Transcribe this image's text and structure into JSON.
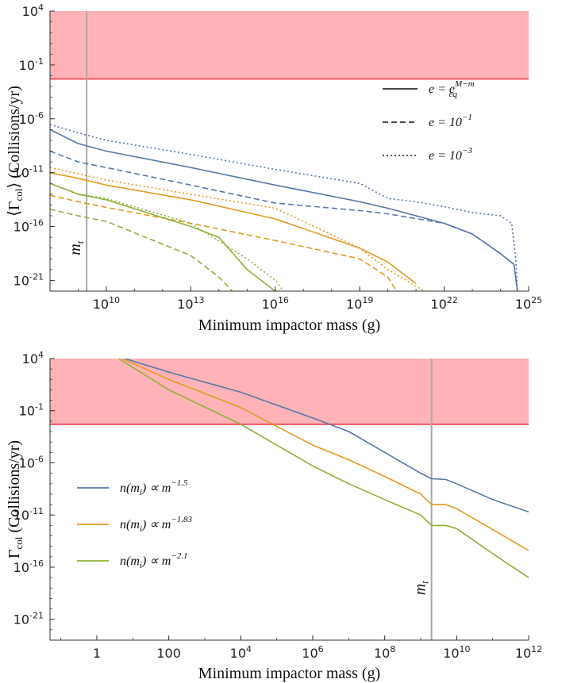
{
  "chart_data": [
    {
      "type": "line",
      "xscale": "log",
      "yscale": "log",
      "xlabel": "Minimum impactor mass (g)",
      "ylabel": "⟨Γ",
      "ylabel_sub": "col",
      "ylabel_rest": "⟩ (Collisions/yr)",
      "xlim": [
        100000000.0,
        1e+25
      ],
      "ylim": [
        1e-22,
        10000.0
      ],
      "xticks": [
        {
          "v": 10000000000.0,
          "base": "10",
          "exp": "10"
        },
        {
          "v": 10000000000000.0,
          "base": "10",
          "exp": "13"
        },
        {
          "v": 1e+16,
          "base": "10",
          "exp": "16"
        },
        {
          "v": 1e+19,
          "base": "10",
          "exp": "19"
        },
        {
          "v": 1e+22,
          "base": "10",
          "exp": "22"
        },
        {
          "v": 1e+25,
          "base": "10",
          "exp": "25"
        }
      ],
      "yticks": [
        {
          "v": 10000.0,
          "base": "10",
          "exp": "4"
        },
        {
          "v": 0.1,
          "base": "10",
          "exp": "-1"
        },
        {
          "v": 1e-06,
          "base": "10",
          "exp": "-6"
        },
        {
          "v": 1e-11,
          "base": "10",
          "exp": "-11"
        },
        {
          "v": 1e-16,
          "base": "10",
          "exp": "-16"
        },
        {
          "v": 1e-21,
          "base": "10",
          "exp": "-21"
        }
      ],
      "excluded_region": {
        "ymin": 0.005,
        "ymax": 10000.0,
        "fill": "#ffb3b8",
        "line": "#f0555e"
      },
      "vline": {
        "x": 2000000000.0,
        "label": "m",
        "label_sub": "t",
        "label_y": 1e-18
      },
      "legend_position": "top-right",
      "legend": [
        {
          "style": "solid",
          "label": "e = e",
          "sup": "M−m",
          "sub": "eq"
        },
        {
          "style": "dashed",
          "label": "e = 10",
          "sup": "−1",
          "sub": ""
        },
        {
          "style": "dotted",
          "label": "e = 10",
          "sup": "−3",
          "sub": ""
        }
      ],
      "series": [
        {
          "color": "#5878a8",
          "style": "solid",
          "points": [
            [
              100000000.0,
              1e-07
            ],
            [
              1000000000.0,
              5e-09
            ],
            [
              10000000000.0,
              1e-09
            ],
            [
              10000000000000.0,
              3e-11
            ],
            [
              1e+16,
              7e-13
            ],
            [
              1e+19,
              2e-14
            ],
            [
              1e+20,
              5e-15
            ],
            [
              1e+22,
              2e-16
            ],
            [
              1e+23,
              2e-17
            ],
            [
              1e+24,
              3e-19
            ],
            [
              3e+24,
              3e-20
            ],
            [
              4e+24,
              1e-22
            ]
          ]
        },
        {
          "color": "#5878a8",
          "style": "dashed",
          "points": [
            [
              100000000.0,
              1e-09
            ],
            [
              1000000000.0,
              1e-10
            ],
            [
              10000000000.0,
              3e-11
            ],
            [
              10000000000000.0,
              7e-13
            ],
            [
              1e+16,
              1.5e-14
            ],
            [
              1e+19,
              3e-15
            ],
            [
              1e+20,
              1.5e-15
            ],
            [
              1e+22,
              2e-16
            ],
            [
              1e+23,
              2e-17
            ],
            [
              1e+24,
              3e-19
            ],
            [
              3e+24,
              3e-20
            ],
            [
              4e+24,
              1e-22
            ]
          ]
        },
        {
          "color": "#5878a8",
          "style": "dotted",
          "points": [
            [
              100000000.0,
              3e-07
            ],
            [
              1000000000.0,
              5e-08
            ],
            [
              10000000000.0,
              1e-08
            ],
            [
              10000000000000.0,
              5e-10
            ],
            [
              1e+16,
              2e-11
            ],
            [
              1e+19,
              1e-12
            ],
            [
              1e+20,
              4e-14
            ],
            [
              1e+21,
              2e-14
            ],
            [
              1e+22,
              7e-15
            ],
            [
              1e+23,
              2e-15
            ],
            [
              1e+24,
              1e-15
            ],
            [
              2.5e+24,
              2e-16
            ],
            [
              3.5e+24,
              1e-19
            ],
            [
              4e+24,
              1e-22
            ]
          ]
        },
        {
          "color": "#e59a20",
          "style": "solid",
          "points": [
            [
              100000000.0,
              1e-11
            ],
            [
              1000000000.0,
              3e-12
            ],
            [
              10000000000.0,
              7e-13
            ],
            [
              10000000000000.0,
              3e-14
            ],
            [
              1e+16,
              5e-16
            ],
            [
              1e+19,
              1e-18
            ],
            [
              1e+20,
              5e-20
            ],
            [
              1e+21,
              5e-22
            ]
          ]
        },
        {
          "color": "#e59a20",
          "style": "dashed",
          "points": [
            [
              100000000.0,
              8e-14
            ],
            [
              1000000000.0,
              2e-14
            ],
            [
              10000000000.0,
              6e-15
            ],
            [
              10000000000000.0,
              2e-16
            ],
            [
              1e+16,
              5e-18
            ],
            [
              1e+19,
              1e-19
            ],
            [
              1e+20,
              2e-21
            ],
            [
              2e+20,
              1e-22
            ]
          ]
        },
        {
          "color": "#e59a20",
          "style": "dotted",
          "points": [
            [
              100000000.0,
              3e-11
            ],
            [
              1000000000.0,
              8e-12
            ],
            [
              10000000000.0,
              2e-12
            ],
            [
              10000000000000.0,
              1e-13
            ],
            [
              1e+16,
              5e-15
            ],
            [
              1e+19,
              1e-18
            ],
            [
              1e+20,
              1e-20
            ],
            [
              2e+21,
              1e-22
            ]
          ]
        },
        {
          "color": "#8fb03a",
          "style": "solid",
          "points": [
            [
              100000000.0,
              1e-12
            ],
            [
              1000000000.0,
              1e-13
            ],
            [
              10000000000.0,
              3e-14
            ],
            [
              10000000000000.0,
              1e-16
            ],
            [
              100000000000000.0,
              1e-17
            ],
            [
              1000000000000000.0,
              1e-20
            ],
            [
              1e+16,
              1e-22
            ]
          ]
        },
        {
          "color": "#8fb03a",
          "style": "dashed",
          "points": [
            [
              100000000.0,
              4e-15
            ],
            [
              1000000000.0,
              1e-15
            ],
            [
              10000000000.0,
              3e-16
            ],
            [
              10000000000000.0,
              2e-19
            ],
            [
              100000000000000.0,
              2e-21
            ],
            [
              300000000000000.0,
              1e-22
            ]
          ]
        },
        {
          "color": "#8fb03a",
          "style": "dotted",
          "points": [
            [
              100000000.0,
              1e-12
            ],
            [
              1000000000.0,
              1e-13
            ],
            [
              10000000000.0,
              4e-14
            ],
            [
              10000000000000.0,
              2e-16
            ],
            [
              1000000000000000.0,
              1e-19
            ],
            [
              1e+16,
              1e-21
            ],
            [
              2e+16,
              1e-22
            ]
          ]
        }
      ]
    },
    {
      "type": "line",
      "xscale": "log",
      "yscale": "log",
      "xlabel": "Minimum impactor mass (g)",
      "ylabel": "Γ",
      "ylabel_sub": "col",
      "ylabel_rest": " (Collisions/yr)",
      "xlim": [
        0.05,
        1000000000000.0
      ],
      "ylim": [
        1e-23,
        10000.0
      ],
      "xticks": [
        {
          "v": 1,
          "base": "1",
          "exp": ""
        },
        {
          "v": 100,
          "base": "100",
          "exp": ""
        },
        {
          "v": 10000.0,
          "base": "10",
          "exp": "4"
        },
        {
          "v": 1000000.0,
          "base": "10",
          "exp": "6"
        },
        {
          "v": 100000000.0,
          "base": "10",
          "exp": "8"
        },
        {
          "v": 10000000000.0,
          "base": "10",
          "exp": "10"
        },
        {
          "v": 1000000000000.0,
          "base": "10",
          "exp": "12"
        }
      ],
      "yticks": [
        {
          "v": 10000.0,
          "base": "10",
          "exp": "4"
        },
        {
          "v": 0.1,
          "base": "10",
          "exp": "-1"
        },
        {
          "v": 1e-06,
          "base": "10",
          "exp": "-6"
        },
        {
          "v": 1e-11,
          "base": "10",
          "exp": "-11"
        },
        {
          "v": 1e-16,
          "base": "10",
          "exp": "-16"
        },
        {
          "v": 1e-21,
          "base": "10",
          "exp": "-21"
        }
      ],
      "excluded_region": {
        "ymin": 0.005,
        "ymax": 10000.0,
        "fill": "#ffb3b8",
        "line": "#f0555e"
      },
      "vline": {
        "x": 2000000000.0,
        "label": "m",
        "label_sub": "t",
        "label_y": 1e-18
      },
      "legend_position": "bottom-left",
      "legend": [
        {
          "style": "solid",
          "color": "#5878a8",
          "label": "n(m",
          "sub": "i",
          "label2": ") ∝ m",
          "sup": "−1.5"
        },
        {
          "style": "solid",
          "color": "#e59a20",
          "label": "n(m",
          "sub": "i",
          "label2": ") ∝ m",
          "sup": "−1.83"
        },
        {
          "style": "solid",
          "color": "#8fb03a",
          "label": "n(m",
          "sub": "i",
          "label2": ") ∝ m",
          "sup": "−2.1"
        }
      ],
      "series": [
        {
          "name": "n(mi) ∝ m^-1.5",
          "color": "#5878a8",
          "style": "solid",
          "points": [
            [
              6,
              10000.0
            ],
            [
              100,
              500.0
            ],
            [
              10000.0,
              6
            ],
            [
              1000000.0,
              0.02
            ],
            [
              10000000.0,
              0.001
            ],
            [
              100000000.0,
              1e-05
            ],
            [
              1000000000.0,
              1e-07
            ],
            [
              2000000000.0,
              3e-08
            ],
            [
              5000000000.0,
              2.5e-08
            ],
            [
              10000000000.0,
              1e-08
            ],
            [
              100000000000.0,
              3e-10
            ],
            [
              1000000000000.0,
              2e-11
            ]
          ]
        },
        {
          "name": "n(mi) ∝ m^-1.83",
          "color": "#e59a20",
          "style": "solid",
          "points": [
            [
              5,
              10000.0
            ],
            [
              100,
              100.0
            ],
            [
              10000.0,
              0.2
            ],
            [
              1000000.0,
              5e-05
            ],
            [
              10000000.0,
              2e-06
            ],
            [
              100000000.0,
              5e-08
            ],
            [
              1000000000.0,
              1e-09
            ],
            [
              2000000000.0,
              1e-10
            ],
            [
              5000000000.0,
              1e-10
            ],
            [
              10000000000.0,
              4e-11
            ],
            [
              100000000000.0,
              4e-13
            ],
            [
              1000000000000.0,
              4e-15
            ]
          ]
        },
        {
          "name": "n(mi) ∝ m^-2.1",
          "color": "#8fb03a",
          "style": "solid",
          "points": [
            [
              4,
              10000.0
            ],
            [
              100,
              10.0
            ],
            [
              10000.0,
              0.005
            ],
            [
              1000000.0,
              5e-07
            ],
            [
              10000000.0,
              1e-08
            ],
            [
              100000000.0,
              3e-10
            ],
            [
              1000000000.0,
              1e-11
            ],
            [
              2000000000.0,
              1e-12
            ],
            [
              5000000000.0,
              1e-12
            ],
            [
              10000000000.0,
              5e-13
            ],
            [
              100000000000.0,
              2e-15
            ],
            [
              1000000000000.0,
              1e-17
            ]
          ]
        }
      ]
    }
  ]
}
